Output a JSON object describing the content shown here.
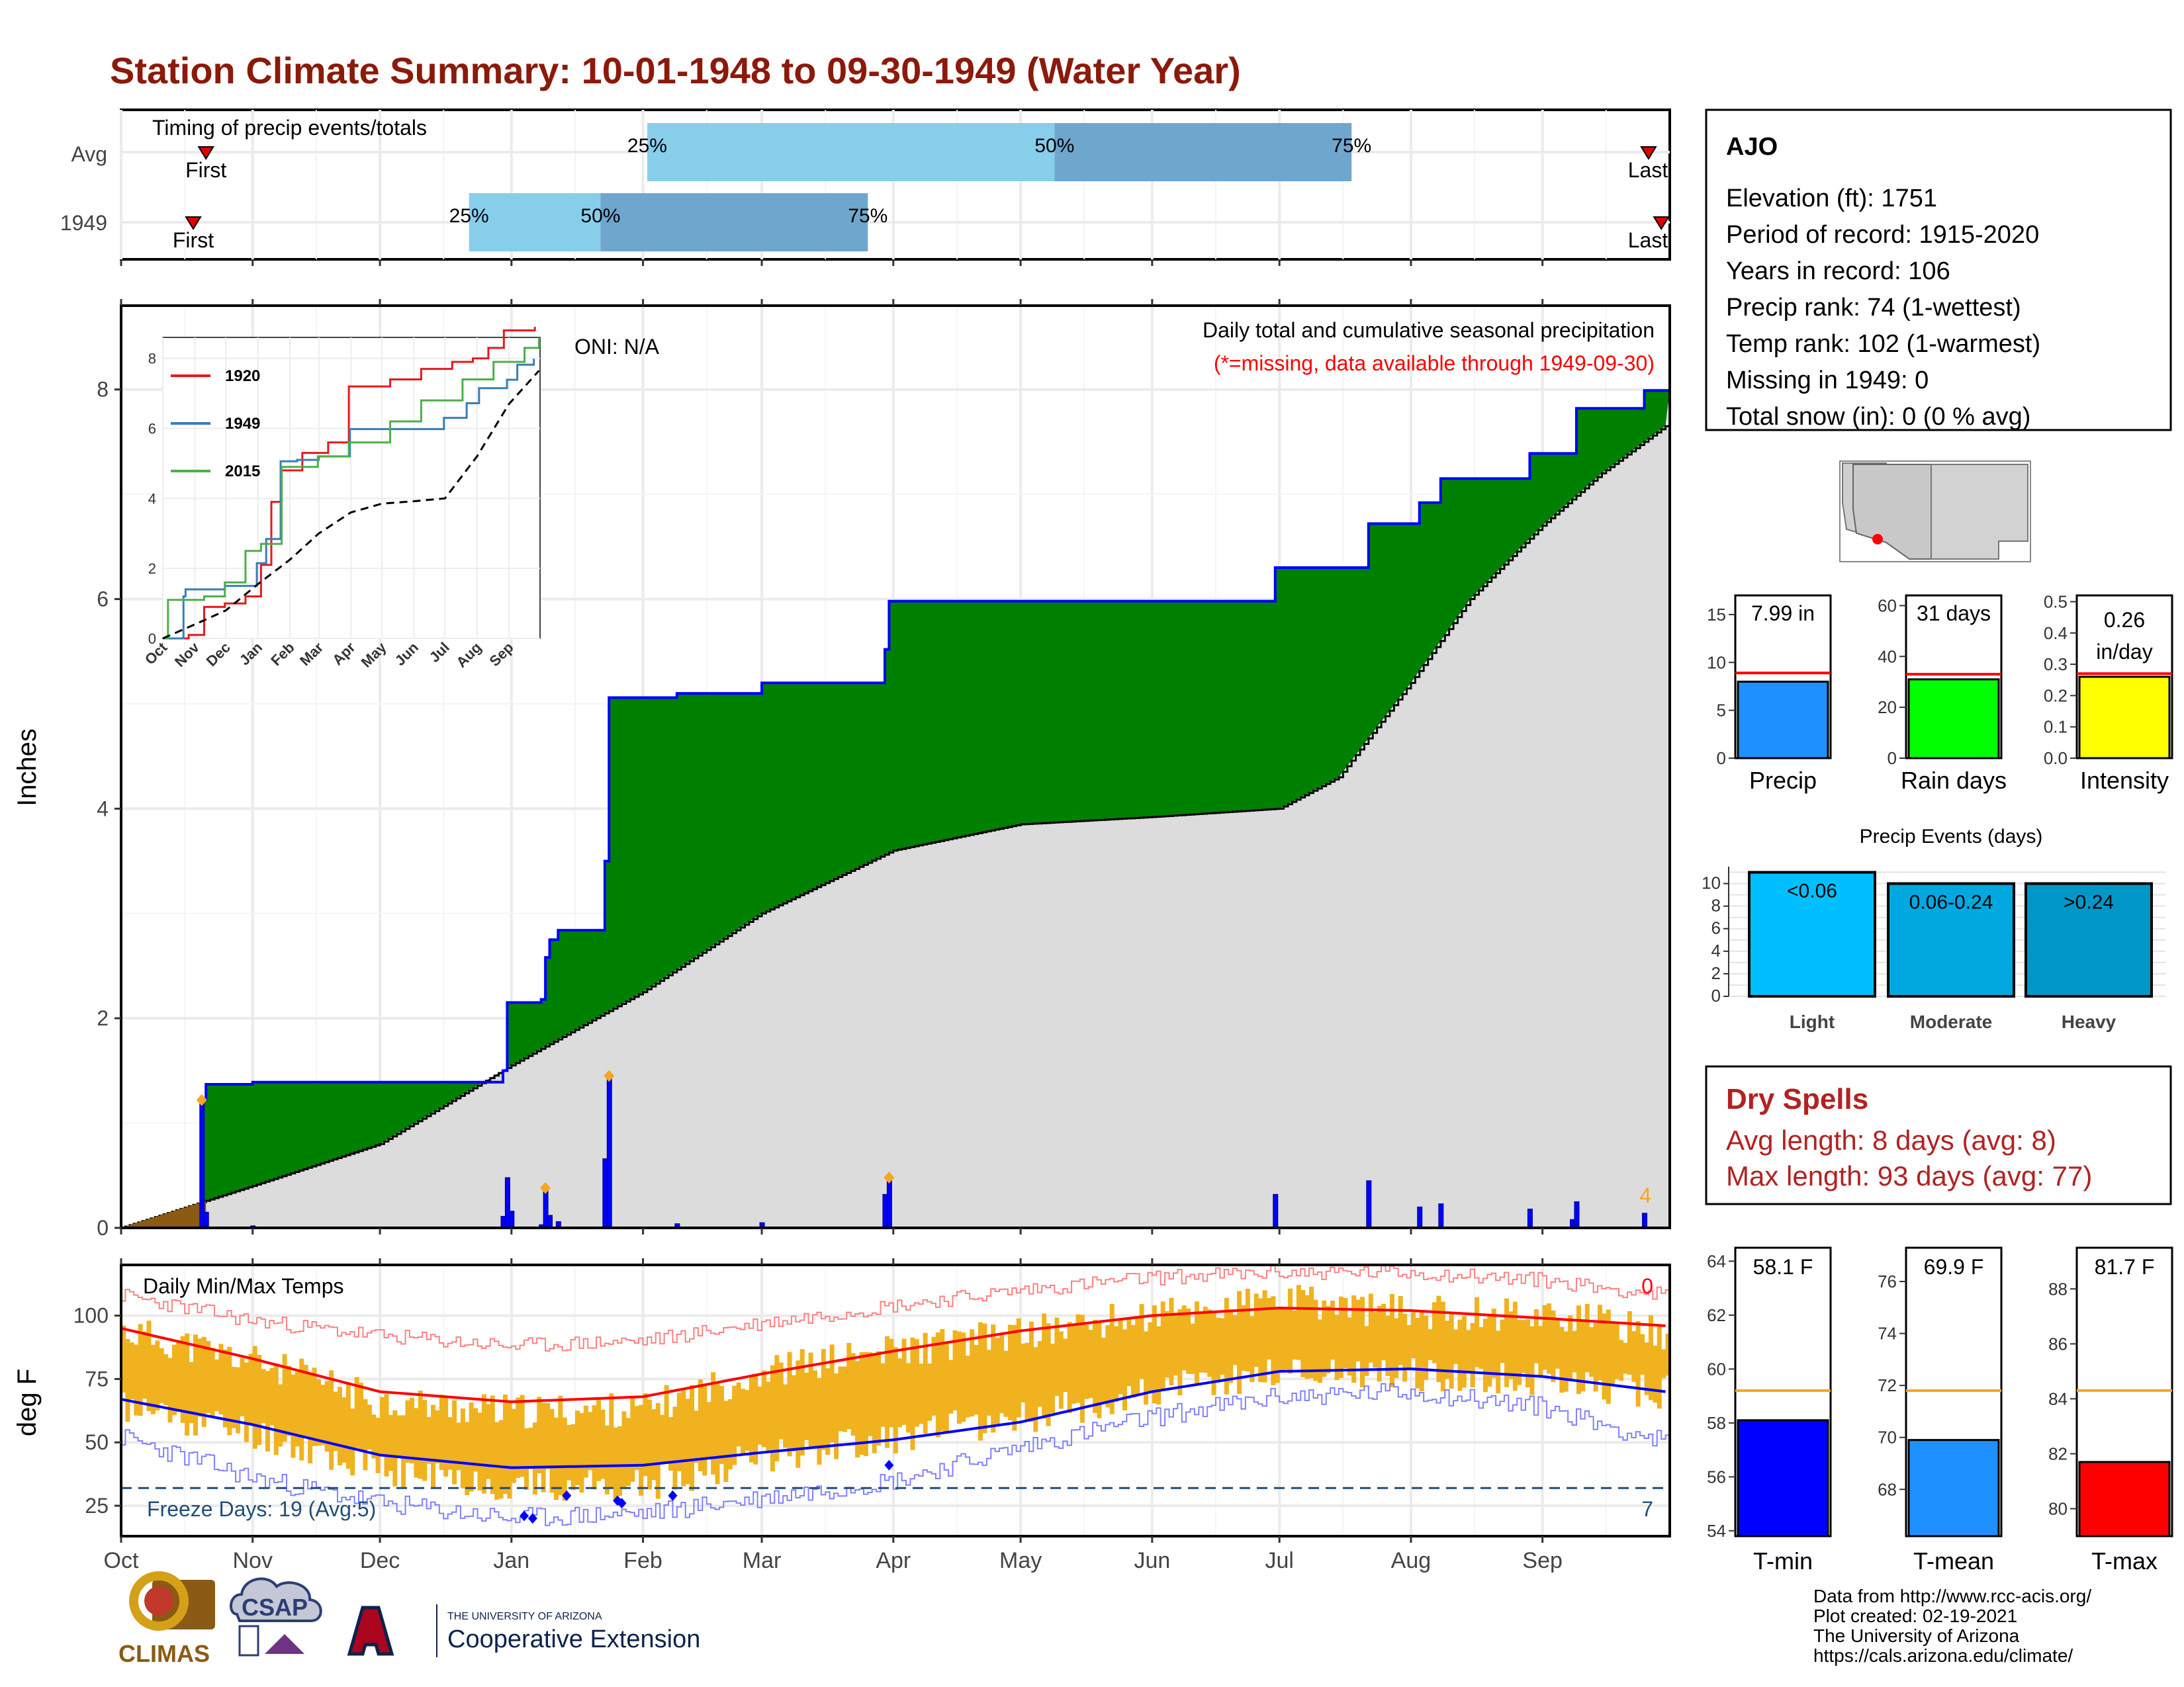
{
  "title": "Station Climate Summary: 10-01-1948 to 09-30-1949 (Water Year)",
  "colors": {
    "title": "#8b1a0a",
    "wet_fill": "#008000",
    "cum_line": "#0000ff",
    "avg_fill": "#dcdcdc",
    "dry_fill": "#8b5a14",
    "daily_bar": "#0000ff",
    "marker": "#f5a623",
    "red": "#ff0000",
    "temp_bar": "#f0b21e",
    "light_blue": "#87ceeb",
    "mid_blue": "#6fa6cd",
    "dry_text": "#b22222",
    "freeze_text": "#1f4e79"
  },
  "timing": {
    "panel_label": "Timing of precip events/totals",
    "rows": [
      {
        "label": "Avg",
        "first": "First",
        "last": "Last",
        "q25": "25%",
        "q50": "50%",
        "q75": "75%",
        "first_doy": 20,
        "last_doy": 360,
        "p25_doy": 124,
        "p50_doy": 220,
        "p75_doy": 290
      },
      {
        "label": "1949",
        "first": "First",
        "last": "Last",
        "q25": "25%",
        "q50": "50%",
        "q75": "75%",
        "first_doy": 17,
        "last_doy": 363,
        "p25_doy": 82,
        "p50_doy": 113,
        "p75_doy": 176
      }
    ]
  },
  "precip_panel": {
    "oni": "ONI: N/A",
    "caption": "Daily total and cumulative seasonal precipitation",
    "missing_note": "(*=missing, data available through 1949-09-30)",
    "ylabel": "Inches",
    "yticks": [
      "0",
      "2",
      "4",
      "6",
      "8"
    ],
    "corner_count": "4"
  },
  "inset": {
    "legend": [
      "1920",
      "1949",
      "2015"
    ],
    "yticks": [
      "0",
      "2",
      "4",
      "6",
      "8"
    ],
    "months": [
      "Oct",
      "Nov",
      "Dec",
      "Jan",
      "Feb",
      "Mar",
      "Apr",
      "May",
      "Jun",
      "Jul",
      "Aug",
      "Sep"
    ]
  },
  "temp_panel": {
    "label": "Daily Min/Max Temps",
    "ylabel": "deg F",
    "yticks": [
      "25",
      "50",
      "75",
      "100"
    ],
    "freeze": "Freeze Days: 19 (Avg:5)",
    "count_hot": "0",
    "count_cold": "7"
  },
  "months": [
    "Oct",
    "Nov",
    "Dec",
    "Jan",
    "Feb",
    "Mar",
    "Apr",
    "May",
    "Jun",
    "Jul",
    "Aug",
    "Sep"
  ],
  "station": {
    "name": "AJO",
    "lines": [
      "Elevation (ft): 1751",
      "Period of record: 1915-2020",
      "Years in record: 106",
      "Precip rank: 74 (1-wettest)",
      "Temp rank: 102 (1-warmest)",
      "Missing in 1949: 0",
      "Total snow (in): 0 (0 % avg)"
    ]
  },
  "mini_precip": {
    "panels": [
      {
        "label": "Precip",
        "value_text": "7.99 in",
        "value": 7.99,
        "avg": 8.9,
        "ymax": 17,
        "ticks": [
          "15",
          "10",
          "5",
          "0"
        ],
        "tick_vals": [
          15,
          10,
          5,
          0
        ],
        "color": "#1e90ff"
      },
      {
        "label": "Rain days",
        "value_text": "31 days",
        "value": 31,
        "avg": 33,
        "ymax": 64,
        "ticks": [
          "60",
          "40",
          "20",
          "0"
        ],
        "tick_vals": [
          60,
          40,
          20,
          0
        ],
        "color": "#00ff00"
      },
      {
        "label": "Intensity",
        "value_text": "0.26 in/day",
        "value": 0.26,
        "avg": 0.27,
        "ymax": 0.52,
        "ticks": [
          "0.5",
          "0.4",
          "0.3",
          "0.2",
          "0.1",
          "0.0"
        ],
        "tick_vals": [
          0.5,
          0.4,
          0.3,
          0.2,
          0.1,
          0.0
        ],
        "color": "#ffff00"
      }
    ]
  },
  "events": {
    "title": "Precip Events (days)",
    "ticks": [
      "10",
      "8",
      "6",
      "4",
      "2",
      "0"
    ],
    "categories": [
      "Light",
      "Moderate",
      "Heavy"
    ],
    "bar_labels": [
      "<0.06",
      "0.06-0.24",
      ">0.24"
    ],
    "values": [
      11,
      10,
      10
    ],
    "colors": [
      "#00bfff",
      "#00a8e0",
      "#0096c8"
    ]
  },
  "dry_spells": {
    "title": "Dry Spells",
    "avg": "Avg length: 8 days (avg: 8)",
    "max": "Max length: 93 days (avg: 77)"
  },
  "mini_temp": {
    "panels": [
      {
        "label": "T-min",
        "value_text": "58.1 F",
        "value": 58.1,
        "avg": 59.2,
        "ymin": 53.8,
        "ymax": 64.5,
        "ticks": [
          "64",
          "62",
          "60",
          "58",
          "56",
          "54"
        ],
        "tick_vals": [
          64,
          62,
          60,
          58,
          56,
          54
        ],
        "color": "#0000ff"
      },
      {
        "label": "T-mean",
        "value_text": "69.9 F",
        "value": 69.9,
        "avg": 71.8,
        "ymin": 66.2,
        "ymax": 77.3,
        "ticks": [
          "76",
          "74",
          "72",
          "70",
          "68"
        ],
        "tick_vals": [
          76,
          74,
          72,
          70,
          68
        ],
        "color": "#1e90ff"
      },
      {
        "label": "T-max",
        "value_text": "81.7 F",
        "value": 81.7,
        "avg": 84.3,
        "ymin": 79.0,
        "ymax": 89.5,
        "ticks": [
          "88",
          "86",
          "84",
          "82",
          "80"
        ],
        "tick_vals": [
          88,
          86,
          84,
          82,
          80
        ],
        "color": "#ff0000"
      }
    ]
  },
  "credits": [
    "Data from http://www.rcc-acis.org/",
    "Plot created: 02-19-2021",
    "The University of Arizona",
    "https://cals.arizona.edu/climate/"
  ],
  "logos": {
    "climas": "CLIMAS",
    "csap": "CSAP",
    "univ_small": "THE UNIVERSITY OF ARIZONA",
    "coop": "Cooperative Extension"
  },
  "chart_data": [
    {
      "type": "area",
      "title": "Daily total and cumulative seasonal precipitation",
      "ylabel": "Inches",
      "ylim": [
        0,
        8.8
      ],
      "cumulative_1949_steps": [
        {
          "date": "1948-10-01",
          "value": 0.0
        },
        {
          "date": "1948-10-20",
          "value": 1.22
        },
        {
          "date": "1948-10-21",
          "value": 1.37
        },
        {
          "date": "1948-11-01",
          "value": 1.39
        },
        {
          "date": "1948-12-30",
          "value": 1.5
        },
        {
          "date": "1948-12-31",
          "value": 2.15
        },
        {
          "date": "1949-01-08",
          "value": 2.18
        },
        {
          "date": "1949-01-09",
          "value": 2.58
        },
        {
          "date": "1949-01-10",
          "value": 2.75
        },
        {
          "date": "1949-01-12",
          "value": 2.84
        },
        {
          "date": "1949-01-23",
          "value": 3.5
        },
        {
          "date": "1949-01-24",
          "value": 5.06
        },
        {
          "date": "1949-02-09",
          "value": 5.1
        },
        {
          "date": "1949-03-01",
          "value": 5.2
        },
        {
          "date": "1949-03-30",
          "value": 5.52
        },
        {
          "date": "1949-03-31",
          "value": 5.98
        },
        {
          "date": "1949-06-30",
          "value": 6.3
        },
        {
          "date": "1949-07-22",
          "value": 6.72
        },
        {
          "date": "1949-08-03",
          "value": 6.92
        },
        {
          "date": "1949-08-08",
          "value": 7.15
        },
        {
          "date": "1949-08-29",
          "value": 7.39
        },
        {
          "date": "1949-09-09",
          "value": 7.82
        },
        {
          "date": "1949-09-25",
          "value": 7.99
        }
      ],
      "average_cumulative": [
        {
          "date": "1948-10-01",
          "value": 0.0
        },
        {
          "date": "1948-11-01",
          "value": 0.4
        },
        {
          "date": "1948-12-01",
          "value": 0.8
        },
        {
          "date": "1949-01-01",
          "value": 1.55
        },
        {
          "date": "1949-02-01",
          "value": 2.25
        },
        {
          "date": "1949-03-01",
          "value": 3.0
        },
        {
          "date": "1949-04-01",
          "value": 3.6
        },
        {
          "date": "1949-05-01",
          "value": 3.85
        },
        {
          "date": "1949-06-01",
          "value": 3.92
        },
        {
          "date": "1949-07-01",
          "value": 4.0
        },
        {
          "date": "1949-07-15",
          "value": 4.3
        },
        {
          "date": "1949-08-01",
          "value": 5.2
        },
        {
          "date": "1949-08-15",
          "value": 6.0
        },
        {
          "date": "1949-09-01",
          "value": 6.7
        },
        {
          "date": "1949-09-15",
          "value": 7.2
        },
        {
          "date": "1949-09-30",
          "value": 7.65
        }
      ],
      "daily_totals": [
        {
          "date": "1948-10-20",
          "value": 1.22
        },
        {
          "date": "1948-10-21",
          "value": 0.15
        },
        {
          "date": "1948-11-01",
          "value": 0.02
        },
        {
          "date": "1948-12-30",
          "value": 0.11
        },
        {
          "date": "1948-12-31",
          "value": 0.48
        },
        {
          "date": "1949-01-01",
          "value": 0.16
        },
        {
          "date": "1949-01-08",
          "value": 0.03
        },
        {
          "date": "1949-01-09",
          "value": 0.4
        },
        {
          "date": "1949-01-10",
          "value": 0.12
        },
        {
          "date": "1949-01-12",
          "value": 0.06
        },
        {
          "date": "1949-01-23",
          "value": 0.66
        },
        {
          "date": "1949-01-24",
          "value": 1.45
        },
        {
          "date": "1949-02-09",
          "value": 0.04
        },
        {
          "date": "1949-03-01",
          "value": 0.05
        },
        {
          "date": "1949-03-30",
          "value": 0.32
        },
        {
          "date": "1949-03-31",
          "value": 0.46
        },
        {
          "date": "1949-06-30",
          "value": 0.32
        },
        {
          "date": "1949-07-22",
          "value": 0.45
        },
        {
          "date": "1949-08-03",
          "value": 0.2
        },
        {
          "date": "1949-08-08",
          "value": 0.23
        },
        {
          "date": "1949-08-29",
          "value": 0.18
        },
        {
          "date": "1949-09-08",
          "value": 0.08
        },
        {
          "date": "1949-09-09",
          "value": 0.25
        },
        {
          "date": "1949-09-25",
          "value": 0.14
        }
      ]
    },
    {
      "type": "line",
      "ylim": [
        0,
        8.6
      ],
      "series": [
        {
          "name": "1920",
          "points": [
            [
              0,
              0
            ],
            [
              25,
              0.1
            ],
            [
              40,
              0.9
            ],
            [
              60,
              1.0
            ],
            [
              80,
              1.2
            ],
            [
              95,
              2.1
            ],
            [
              105,
              3.9
            ],
            [
              115,
              4.8
            ],
            [
              135,
              5.3
            ],
            [
              160,
              5.6
            ],
            [
              180,
              7.2
            ],
            [
              220,
              7.4
            ],
            [
              250,
              7.7
            ],
            [
              280,
              7.9
            ],
            [
              300,
              8.0
            ],
            [
              315,
              8.3
            ],
            [
              330,
              8.8
            ],
            [
              360,
              8.9
            ]
          ]
        },
        {
          "name": "1949",
          "points": [
            [
              0,
              0
            ],
            [
              20,
              1.2
            ],
            [
              22,
              1.4
            ],
            [
              60,
              1.5
            ],
            [
              91,
              2.15
            ],
            [
              100,
              2.84
            ],
            [
              114,
              5.06
            ],
            [
              130,
              5.1
            ],
            [
              151,
              5.2
            ],
            [
              181,
              5.98
            ],
            [
              272,
              6.3
            ],
            [
              294,
              6.72
            ],
            [
              306,
              7.15
            ],
            [
              333,
              7.39
            ],
            [
              343,
              7.82
            ],
            [
              359,
              7.99
            ]
          ]
        },
        {
          "name": "2015",
          "points": [
            [
              0,
              0
            ],
            [
              5,
              1.1
            ],
            [
              40,
              1.2
            ],
            [
              60,
              1.6
            ],
            [
              80,
              2.5
            ],
            [
              95,
              2.7
            ],
            [
              115,
              4.9
            ],
            [
              150,
              5.2
            ],
            [
              180,
              5.6
            ],
            [
              220,
              6.2
            ],
            [
              250,
              6.8
            ],
            [
              290,
              7.4
            ],
            [
              320,
              7.9
            ],
            [
              350,
              8.3
            ],
            [
              364,
              8.6
            ]
          ]
        },
        {
          "name": "",
          "style": "dashed",
          "points": [
            [
              0,
              0
            ],
            [
              31,
              0.4
            ],
            [
              61,
              0.8
            ],
            [
              92,
              1.55
            ],
            [
              123,
              2.25
            ],
            [
              151,
              3.0
            ],
            [
              182,
              3.6
            ],
            [
              212,
              3.85
            ],
            [
              243,
              3.92
            ],
            [
              273,
              4.0
            ],
            [
              304,
              5.2
            ],
            [
              335,
              6.7
            ],
            [
              364,
              7.65
            ]
          ]
        }
      ]
    },
    {
      "type": "area",
      "title": "Daily Min/Max Temps",
      "ylabel": "deg F",
      "ylim": [
        13,
        120
      ],
      "freeze_line": 32,
      "avg_max": [
        [
          0,
          95
        ],
        [
          31,
          83
        ],
        [
          61,
          70
        ],
        [
          92,
          66
        ],
        [
          123,
          68
        ],
        [
          151,
          77
        ],
        [
          182,
          86
        ],
        [
          212,
          94
        ],
        [
          243,
          100
        ],
        [
          273,
          103
        ],
        [
          304,
          102
        ],
        [
          335,
          99
        ],
        [
          364,
          96
        ]
      ],
      "avg_min": [
        [
          0,
          67
        ],
        [
          31,
          57
        ],
        [
          61,
          45
        ],
        [
          92,
          40
        ],
        [
          123,
          41
        ],
        [
          151,
          46
        ],
        [
          182,
          51
        ],
        [
          212,
          58
        ],
        [
          243,
          70
        ],
        [
          273,
          78
        ],
        [
          304,
          79
        ],
        [
          335,
          76
        ],
        [
          364,
          70
        ]
      ],
      "record_max": [
        [
          0,
          108
        ],
        [
          31,
          98
        ],
        [
          61,
          92
        ],
        [
          92,
          88
        ],
        [
          123,
          90
        ],
        [
          151,
          97
        ],
        [
          182,
          104
        ],
        [
          212,
          110
        ],
        [
          243,
          115
        ],
        [
          273,
          117
        ],
        [
          304,
          117
        ],
        [
          335,
          114
        ],
        [
          364,
          108
        ]
      ],
      "record_min": [
        [
          0,
          52
        ],
        [
          31,
          36
        ],
        [
          61,
          26
        ],
        [
          92,
          20
        ],
        [
          123,
          22
        ],
        [
          151,
          28
        ],
        [
          182,
          35
        ],
        [
          212,
          48
        ],
        [
          243,
          60
        ],
        [
          273,
          68
        ],
        [
          304,
          70
        ],
        [
          335,
          64
        ],
        [
          364,
          50
        ]
      ],
      "daily_max_approx": [
        [
          0,
          94
        ],
        [
          31,
          82
        ],
        [
          61,
          66
        ],
        [
          92,
          62
        ],
        [
          123,
          63
        ],
        [
          151,
          78
        ],
        [
          182,
          86
        ],
        [
          212,
          93
        ],
        [
          243,
          100
        ],
        [
          273,
          106
        ],
        [
          304,
          101
        ],
        [
          335,
          101
        ],
        [
          364,
          93
        ]
      ],
      "daily_min_approx": [
        [
          0,
          64
        ],
        [
          31,
          54
        ],
        [
          61,
          39
        ],
        [
          92,
          33
        ],
        [
          123,
          33
        ],
        [
          151,
          45
        ],
        [
          182,
          52
        ],
        [
          212,
          60
        ],
        [
          243,
          70
        ],
        [
          273,
          78
        ],
        [
          304,
          77
        ],
        [
          335,
          74
        ],
        [
          364,
          70
        ]
      ]
    },
    {
      "type": "bar",
      "categories": [
        "Light",
        "Moderate",
        "Heavy"
      ],
      "values": [
        11,
        10,
        10
      ],
      "title": "Precip Events (days)"
    }
  ]
}
